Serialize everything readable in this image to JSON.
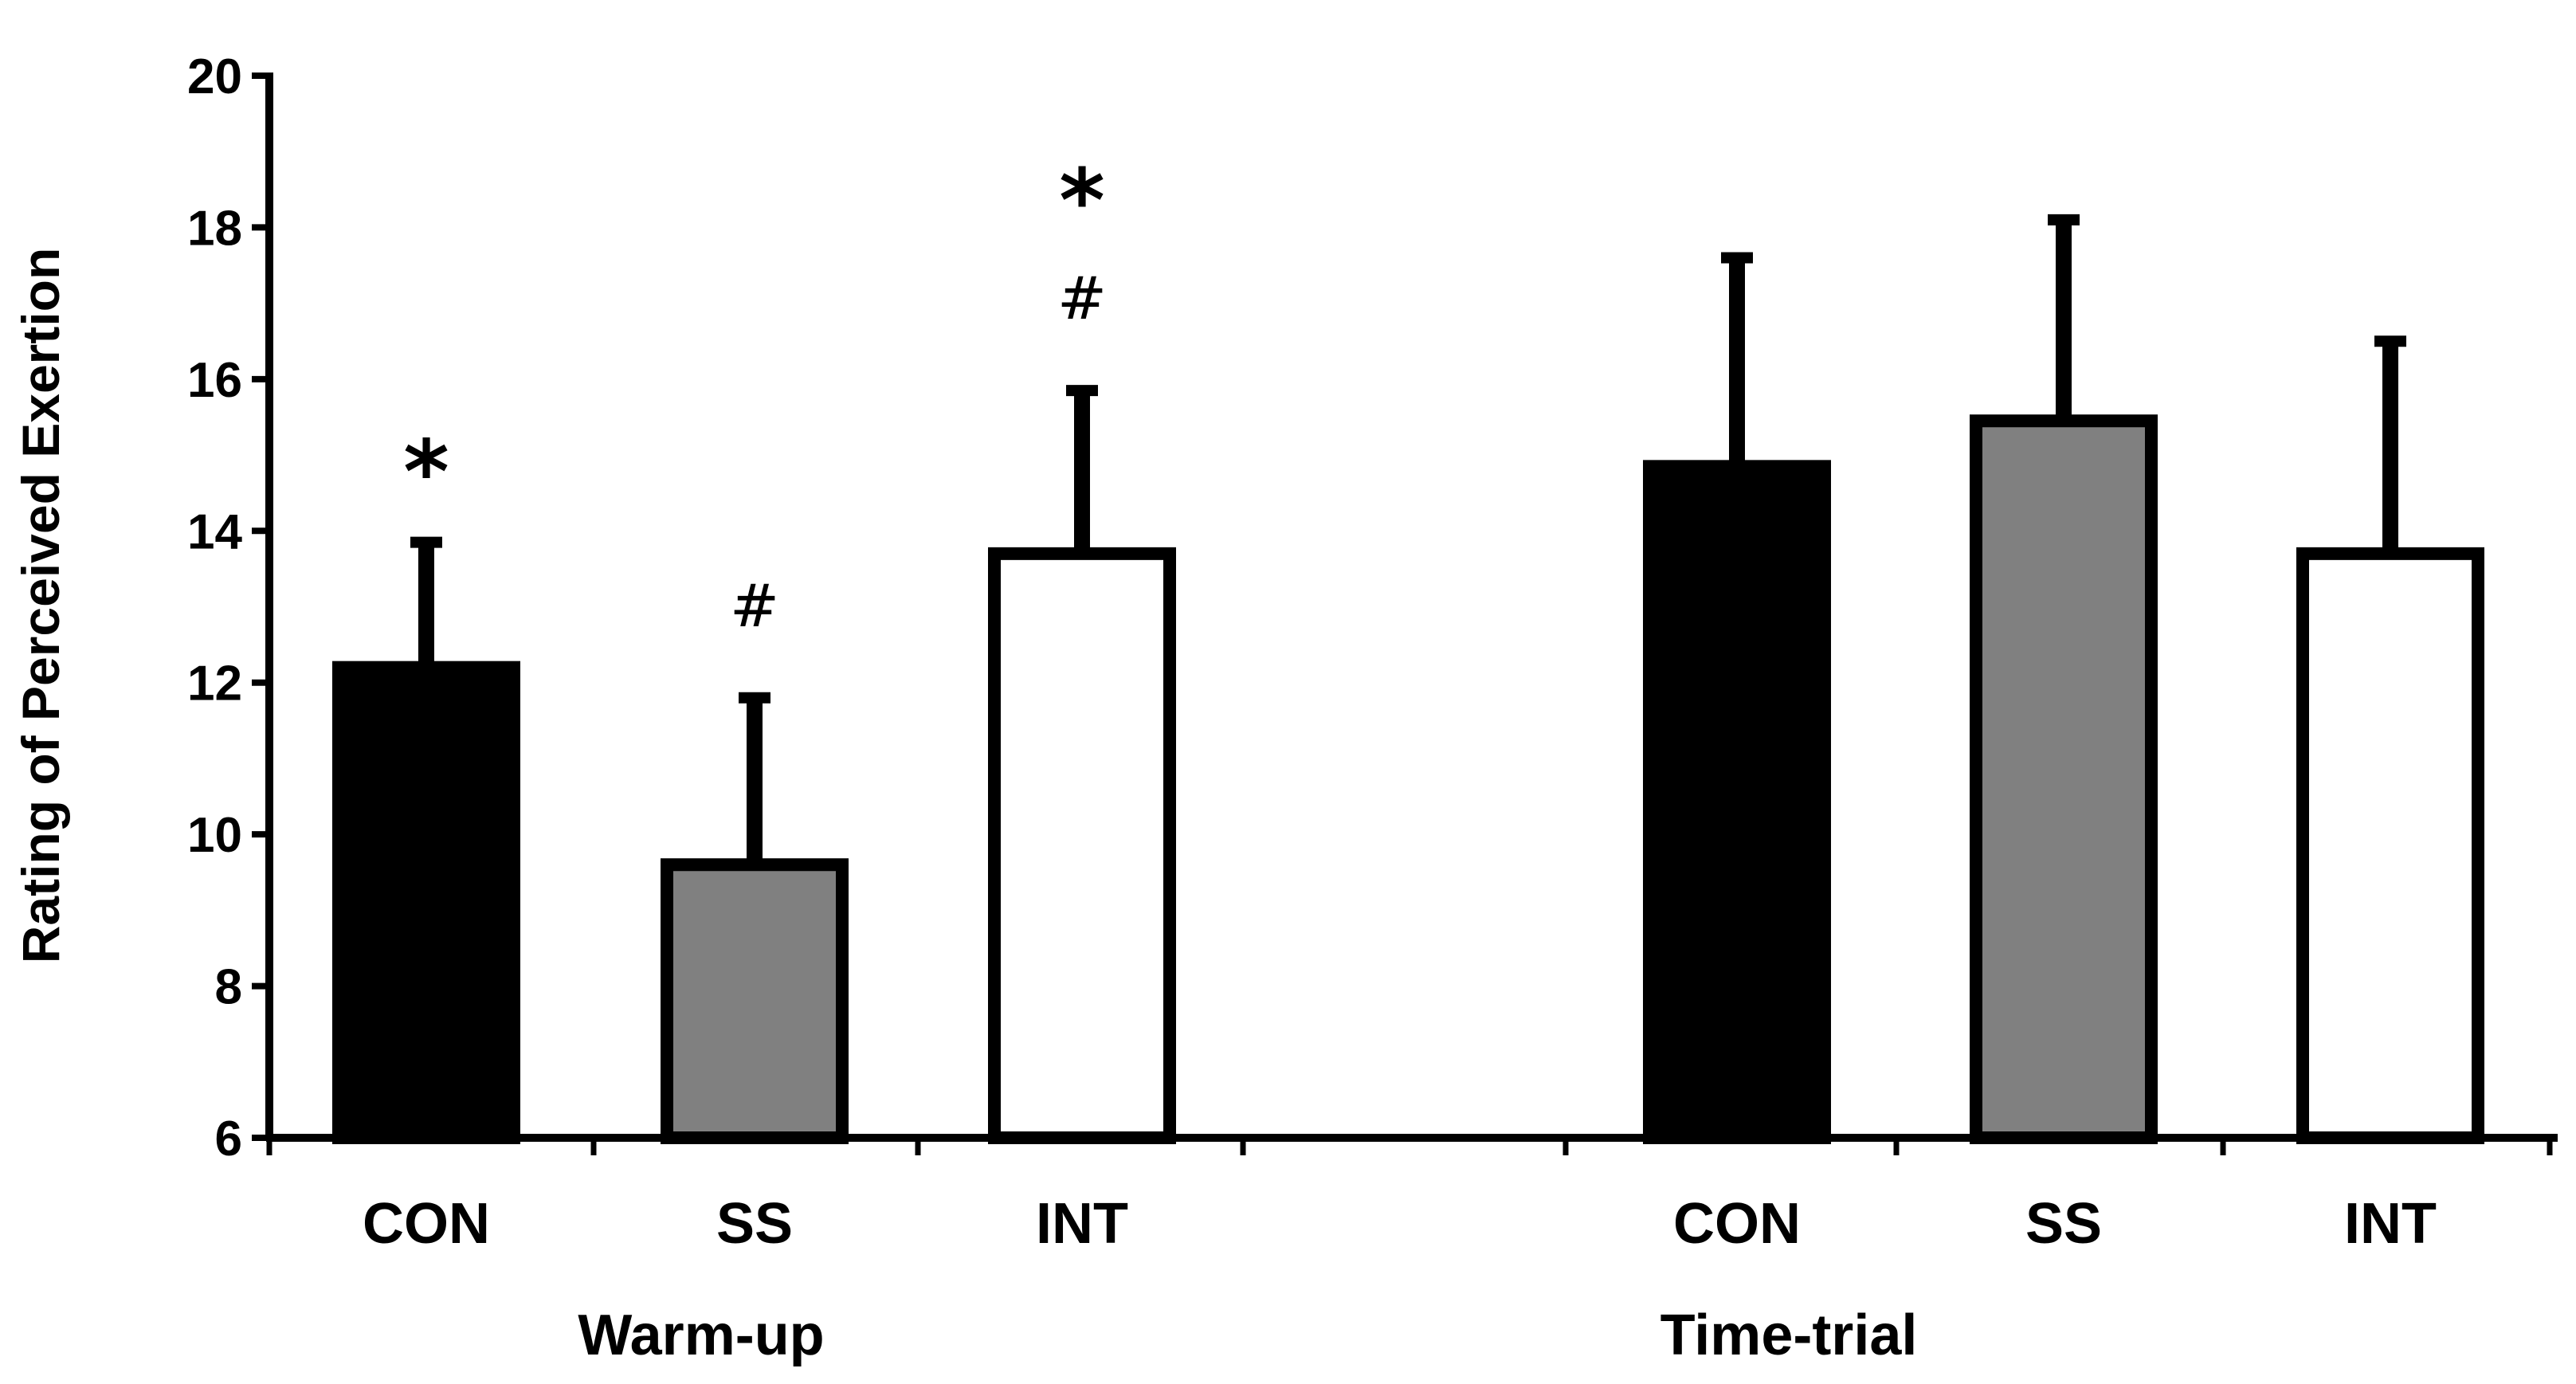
{
  "chart_data": {
    "type": "bar",
    "title": "",
    "xlabel": "",
    "ylabel": "Rating of Perceived Exertion",
    "ylim": [
      6,
      20
    ],
    "yticks": [
      6,
      8,
      10,
      12,
      14,
      16,
      18,
      20
    ],
    "grid": false,
    "groups": [
      {
        "label": "Warm-up",
        "bars": [
          {
            "category": "CON",
            "value": 12.2,
            "error": 1.65,
            "fill": "#000000",
            "annotations": [
              "*"
            ]
          },
          {
            "category": "SS",
            "value": 9.6,
            "error": 2.2,
            "fill": "#808080",
            "annotations": [
              "#"
            ]
          },
          {
            "category": "INT",
            "value": 13.7,
            "error": 2.15,
            "fill": "#ffffff",
            "annotations": [
              "#",
              "*"
            ]
          }
        ]
      },
      {
        "label": "Time-trial",
        "bars": [
          {
            "category": "CON",
            "value": 14.85,
            "error": 2.75,
            "fill": "#000000",
            "annotations": []
          },
          {
            "category": "SS",
            "value": 15.45,
            "error": 2.65,
            "fill": "#808080",
            "annotations": []
          },
          {
            "category": "INT",
            "value": 13.7,
            "error": 2.8,
            "fill": "#ffffff",
            "annotations": []
          }
        ]
      }
    ]
  }
}
